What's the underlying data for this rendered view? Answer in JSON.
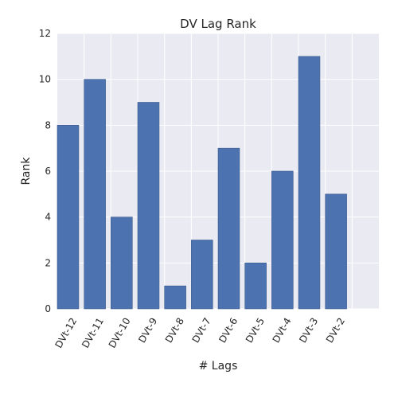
{
  "chart_data": {
    "type": "bar",
    "title": "DV Lag Rank",
    "xlabel": "# Lags",
    "ylabel": "Rank",
    "categories": [
      "DVt-12",
      "DVt-11",
      "DVt-10",
      "DVt-9",
      "DVt-8",
      "DVt-7",
      "DVt-6",
      "DVt-5",
      "DVt-4",
      "DVt-3",
      "DVt-2"
    ],
    "values": [
      8,
      10,
      4,
      9,
      1,
      3,
      7,
      2,
      6,
      11,
      5
    ],
    "ylim": [
      0,
      12
    ],
    "yticks": [
      "0",
      "2",
      "4",
      "6",
      "8",
      "10",
      "12"
    ],
    "grid": true,
    "bar_color": "#4c72b0",
    "plot_background": "#eaeaf2",
    "grid_color": "#ffffff"
  }
}
